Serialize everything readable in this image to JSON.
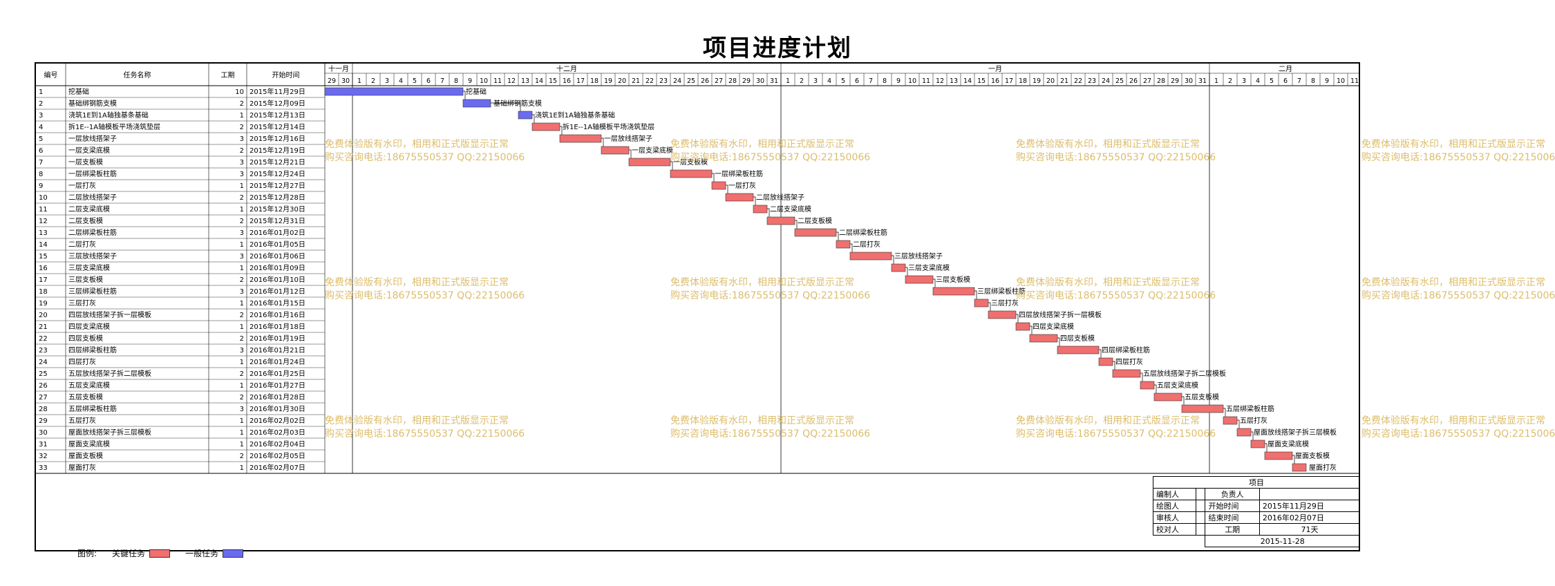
{
  "title": "项目进度计划",
  "columns": {
    "num": "编号",
    "name": "任务名称",
    "dur": "工期",
    "start": "开始时间"
  },
  "timeline": {
    "months": [
      {
        "label": "十一月",
        "days": [
          "29",
          "30"
        ]
      },
      {
        "label": "十二月",
        "days": [
          "1",
          "2",
          "3",
          "4",
          "5",
          "6",
          "7",
          "8",
          "9",
          "10",
          "11",
          "12",
          "13",
          "14",
          "15",
          "16",
          "17",
          "18",
          "19",
          "20",
          "21",
          "22",
          "23",
          "24",
          "25",
          "26",
          "27",
          "28",
          "29",
          "30",
          "31"
        ]
      },
      {
        "label": "一月",
        "days": [
          "1",
          "2",
          "3",
          "4",
          "5",
          "6",
          "7",
          "8",
          "9",
          "10",
          "11",
          "12",
          "13",
          "14",
          "15",
          "16",
          "17",
          "18",
          "19",
          "20",
          "21",
          "22",
          "23",
          "24",
          "25",
          "26",
          "27",
          "28",
          "29",
          "30",
          "31"
        ]
      },
      {
        "label": "二月",
        "days": [
          "1",
          "2",
          "3",
          "4",
          "5",
          "6",
          "7",
          "8",
          "9",
          "10",
          "11"
        ]
      }
    ]
  },
  "tasks": [
    {
      "num": "1",
      "name": "挖基础",
      "dur": "10",
      "start": "2015年11月29日",
      "type": "normal"
    },
    {
      "num": "2",
      "name": "基础绑钢筋支模",
      "dur": "2",
      "start": "2015年12月09日",
      "type": "normal"
    },
    {
      "num": "3",
      "name": "浇筑1E到1A轴独基条基础",
      "dur": "1",
      "start": "2015年12月13日",
      "type": "normal"
    },
    {
      "num": "4",
      "name": "拆1E--1A轴模板平场浇筑垫层",
      "dur": "2",
      "start": "2015年12月14日",
      "type": "critical"
    },
    {
      "num": "5",
      "name": "一层放线搭架子",
      "dur": "3",
      "start": "2015年12月16日",
      "type": "critical"
    },
    {
      "num": "6",
      "name": "一层支梁底模",
      "dur": "2",
      "start": "2015年12月19日",
      "type": "critical"
    },
    {
      "num": "7",
      "name": "一层支板模",
      "dur": "3",
      "start": "2015年12月21日",
      "type": "critical"
    },
    {
      "num": "8",
      "name": "一层绑梁板柱筋",
      "dur": "3",
      "start": "2015年12月24日",
      "type": "critical"
    },
    {
      "num": "9",
      "name": "一层打灰",
      "dur": "1",
      "start": "2015年12月27日",
      "type": "critical"
    },
    {
      "num": "10",
      "name": "二层放线搭架子",
      "dur": "2",
      "start": "2015年12月28日",
      "type": "critical"
    },
    {
      "num": "11",
      "name": "二层支梁底模",
      "dur": "1",
      "start": "2015年12月30日",
      "type": "critical"
    },
    {
      "num": "12",
      "name": "二层支板模",
      "dur": "2",
      "start": "2015年12月31日",
      "type": "critical"
    },
    {
      "num": "13",
      "name": "二层绑梁板柱筋",
      "dur": "3",
      "start": "2016年01月02日",
      "type": "critical"
    },
    {
      "num": "14",
      "name": "二层打灰",
      "dur": "1",
      "start": "2016年01月05日",
      "type": "critical"
    },
    {
      "num": "15",
      "name": "三层放线搭架子",
      "dur": "3",
      "start": "2016年01月06日",
      "type": "critical"
    },
    {
      "num": "16",
      "name": "三层支梁底模",
      "dur": "1",
      "start": "2016年01月09日",
      "type": "critical"
    },
    {
      "num": "17",
      "name": "三层支板模",
      "dur": "2",
      "start": "2016年01月10日",
      "type": "critical"
    },
    {
      "num": "18",
      "name": "三层绑梁板柱筋",
      "dur": "3",
      "start": "2016年01月12日",
      "type": "critical"
    },
    {
      "num": "19",
      "name": "三层打灰",
      "dur": "1",
      "start": "2016年01月15日",
      "type": "critical"
    },
    {
      "num": "20",
      "name": "四层放线搭架子拆一层模板",
      "dur": "2",
      "start": "2016年01月16日",
      "type": "critical"
    },
    {
      "num": "21",
      "name": "四层支梁底模",
      "dur": "1",
      "start": "2016年01月18日",
      "type": "critical"
    },
    {
      "num": "22",
      "name": "四层支板模",
      "dur": "2",
      "start": "2016年01月19日",
      "type": "critical"
    },
    {
      "num": "23",
      "name": "四层绑梁板柱筋",
      "dur": "3",
      "start": "2016年01月21日",
      "type": "critical"
    },
    {
      "num": "24",
      "name": "四层打灰",
      "dur": "1",
      "start": "2016年01月24日",
      "type": "critical"
    },
    {
      "num": "25",
      "name": "五层放线搭架子拆二层模板",
      "dur": "2",
      "start": "2016年01月25日",
      "type": "critical"
    },
    {
      "num": "26",
      "name": "五层支梁底模",
      "dur": "1",
      "start": "2016年01月27日",
      "type": "critical"
    },
    {
      "num": "27",
      "name": "五层支板模",
      "dur": "2",
      "start": "2016年01月28日",
      "type": "critical"
    },
    {
      "num": "28",
      "name": "五层绑梁板柱筋",
      "dur": "3",
      "start": "2016年01月30日",
      "type": "critical"
    },
    {
      "num": "29",
      "name": "五层打灰",
      "dur": "1",
      "start": "2016年02月02日",
      "type": "critical"
    },
    {
      "num": "30",
      "name": "屋面放线搭架子拆三层模板",
      "dur": "1",
      "start": "2016年02月03日",
      "type": "critical"
    },
    {
      "num": "31",
      "name": "屋面支梁底模",
      "dur": "1",
      "start": "2016年02月04日",
      "type": "critical"
    },
    {
      "num": "32",
      "name": "屋面支板模",
      "dur": "2",
      "start": "2016年02月05日",
      "type": "critical"
    },
    {
      "num": "33",
      "name": "屋面打灰",
      "dur": "1",
      "start": "2016年02月07日",
      "type": "critical"
    }
  ],
  "legend": {
    "label": "图例:",
    "critical": "关键任务",
    "normal": "一般任务"
  },
  "colors": {
    "critical": "#f06f6f",
    "normal": "#6b6bf0"
  },
  "info": {
    "project": "项目",
    "editor": "编制人",
    "owner": "负责人",
    "drawer": "绘图人",
    "start_label": "开始时间",
    "start_value": "2015年11月29日",
    "reviewer": "审核人",
    "end_label": "结束时间",
    "end_value": "2016年02月07日",
    "checker": "校对人",
    "dur_label": "工期",
    "dur_value": "71天",
    "date": "2015-11-28"
  },
  "watermark": {
    "line1": "免费体验版有水印，相用和正式版显示正常",
    "line2": "购买咨询电话:18675550537 QQ:22150066"
  }
}
